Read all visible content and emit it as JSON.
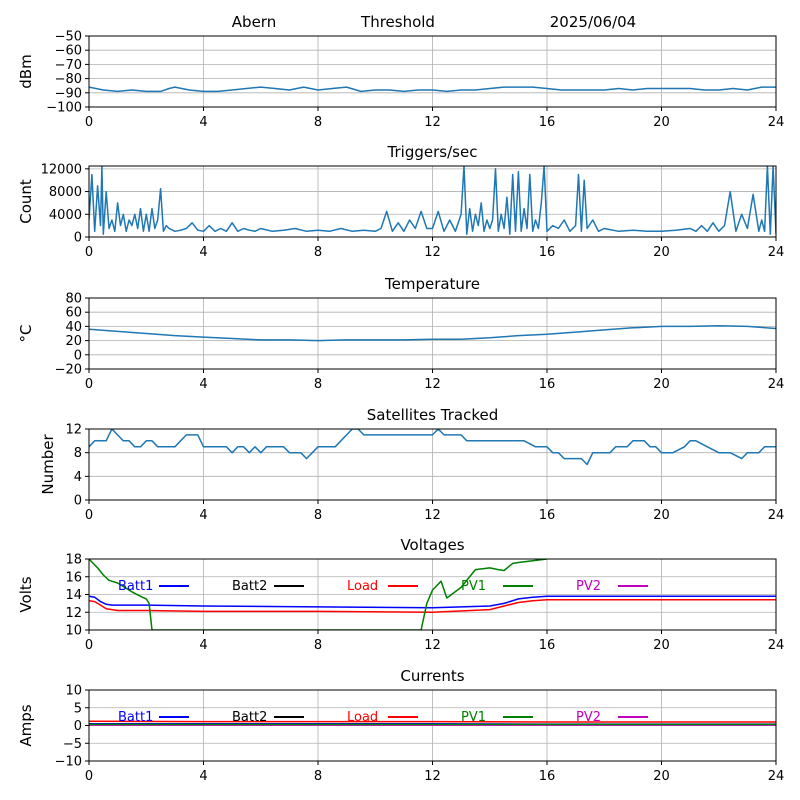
{
  "header": {
    "site": "Abern",
    "mode": "Threshold",
    "date": "2025/06/04"
  },
  "colors": {
    "series": "#1f77b4",
    "grid": "#b0b0b0",
    "batt1": "#0000ff",
    "batt2": "#000000",
    "load": "#ff0000",
    "pv1": "#008000",
    "pv2": "#bf00bf"
  },
  "chart_data": [
    {
      "type": "line",
      "title": "",
      "xlabel": "",
      "ylabel": "dBm",
      "xlim": [
        0,
        24
      ],
      "ylim": [
        -100,
        -50
      ],
      "xticks": [
        0,
        4,
        8,
        12,
        16,
        20,
        24
      ],
      "yticks": [
        -100,
        -90,
        -80,
        -70,
        -60,
        -50
      ],
      "grid": true,
      "series": [
        {
          "x": [
            0,
            0.5,
            1,
            1.5,
            2,
            2.5,
            2.8,
            3,
            3.5,
            4,
            4.5,
            5,
            5.5,
            6,
            6.5,
            7,
            7.5,
            8,
            8.5,
            9,
            9.5,
            10,
            10.5,
            11,
            11.5,
            12,
            12.5,
            13,
            13.5,
            14,
            14.5,
            15,
            15.5,
            16,
            16.5,
            17,
            17.5,
            18,
            18.5,
            19,
            19.5,
            20,
            20.5,
            21,
            21.5,
            22,
            22.5,
            23,
            23.5,
            24
          ],
          "y": [
            -86,
            -88,
            -89,
            -88,
            -89,
            -89,
            -87,
            -86,
            -88,
            -89,
            -89,
            -88,
            -87,
            -86,
            -87,
            -88,
            -86,
            -88,
            -87,
            -86,
            -89,
            -88,
            -88,
            -89,
            -88,
            -88,
            -89,
            -88,
            -88,
            -87,
            -86,
            -86,
            -86,
            -87,
            -88,
            -88,
            -88,
            -88,
            -87,
            -88,
            -87,
            -87,
            -87,
            -87,
            -88,
            -88,
            -87,
            -88,
            -86,
            -86
          ]
        }
      ]
    },
    {
      "type": "line",
      "title": "Triggers/sec",
      "xlabel": "",
      "ylabel": "Count",
      "xlim": [
        0,
        24
      ],
      "ylim": [
        0,
        12500
      ],
      "xticks": [
        0,
        4,
        8,
        12,
        16,
        20,
        24
      ],
      "yticks": [
        0,
        4000,
        8000,
        12000
      ],
      "grid": true,
      "series": [
        {
          "x": [
            0,
            0.1,
            0.2,
            0.3,
            0.4,
            0.45,
            0.5,
            0.6,
            0.7,
            0.8,
            0.9,
            1.0,
            1.1,
            1.2,
            1.3,
            1.4,
            1.5,
            1.6,
            1.7,
            1.8,
            1.9,
            2.0,
            2.1,
            2.2,
            2.3,
            2.4,
            2.5,
            2.6,
            2.7,
            2.8,
            3.0,
            3.2,
            3.4,
            3.6,
            3.8,
            4.0,
            4.2,
            4.4,
            4.6,
            4.8,
            5.0,
            5.2,
            5.4,
            5.6,
            5.8,
            6.0,
            6.4,
            6.8,
            7.2,
            7.6,
            8.0,
            8.4,
            8.8,
            9.2,
            9.6,
            10.0,
            10.2,
            10.4,
            10.6,
            10.8,
            11.0,
            11.2,
            11.4,
            11.6,
            11.8,
            12.0,
            12.2,
            12.4,
            12.6,
            12.8,
            13.0,
            13.1,
            13.2,
            13.3,
            13.4,
            13.5,
            13.6,
            13.7,
            13.8,
            13.9,
            14.0,
            14.1,
            14.2,
            14.3,
            14.4,
            14.5,
            14.6,
            14.7,
            14.8,
            14.9,
            15.0,
            15.1,
            15.2,
            15.3,
            15.4,
            15.5,
            15.6,
            15.7,
            15.8,
            15.9,
            16.0,
            16.2,
            16.4,
            16.6,
            16.8,
            17.0,
            17.1,
            17.2,
            17.3,
            17.4,
            17.6,
            17.8,
            18.0,
            18.5,
            19.0,
            19.5,
            20.0,
            20.5,
            21.0,
            21.2,
            21.4,
            21.6,
            21.8,
            22.0,
            22.2,
            22.4,
            22.6,
            22.8,
            23.0,
            23.2,
            23.4,
            23.5,
            23.6,
            23.7,
            23.8,
            23.9,
            24.0
          ],
          "y": [
            3000,
            11000,
            1000,
            9000,
            2000,
            12500,
            500,
            8000,
            1500,
            3000,
            1000,
            6000,
            2000,
            4000,
            1000,
            3000,
            2000,
            4000,
            1500,
            5000,
            1000,
            4000,
            1000,
            5000,
            1500,
            3000,
            8500,
            1000,
            2000,
            1500,
            1000,
            1200,
            1500,
            2500,
            1200,
            1000,
            2000,
            1000,
            1500,
            1000,
            2500,
            1000,
            1500,
            1200,
            1000,
            1500,
            1000,
            1200,
            1500,
            1000,
            1200,
            1000,
            1500,
            1000,
            1200,
            1000,
            1500,
            4500,
            1000,
            2500,
            1000,
            3000,
            1500,
            4500,
            1500,
            1500,
            4500,
            1000,
            3000,
            1000,
            4000,
            12500,
            500,
            5000,
            1000,
            4000,
            2000,
            6000,
            1000,
            3000,
            1500,
            3000,
            12000,
            1000,
            4000,
            1500,
            7000,
            500,
            11000,
            1000,
            11500,
            1000,
            5000,
            1500,
            11000,
            1000,
            3000,
            1500,
            6000,
            12500,
            1000,
            2000,
            1500,
            3000,
            1000,
            2000,
            11000,
            1000,
            10000,
            1500,
            3000,
            1000,
            1500,
            1000,
            1200,
            1000,
            1000,
            1200,
            1500,
            1000,
            2000,
            1000,
            2500,
            1000,
            2000,
            8000,
            1000,
            4000,
            1500,
            7500,
            1000,
            3000,
            1000,
            12500,
            500,
            12500,
            500
          ]
        }
      ]
    },
    {
      "type": "line",
      "title": "Temperature",
      "xlabel": "",
      "ylabel": "°C",
      "xlim": [
        0,
        24
      ],
      "ylim": [
        -20,
        80
      ],
      "xticks": [
        0,
        4,
        8,
        12,
        16,
        20,
        24
      ],
      "yticks": [
        -20,
        0,
        20,
        40,
        60,
        80
      ],
      "grid": true,
      "series": [
        {
          "x": [
            0,
            1,
            2,
            3,
            4,
            5,
            6,
            7,
            8,
            9,
            10,
            11,
            12,
            13,
            14,
            15,
            16,
            17,
            18,
            19,
            20,
            21,
            22,
            23,
            24
          ],
          "y": [
            36,
            33,
            30,
            27,
            25,
            23,
            21,
            21,
            20,
            21,
            21,
            21,
            22,
            22,
            24,
            27,
            29,
            32,
            35,
            38,
            40,
            40,
            41,
            40,
            37
          ]
        }
      ]
    },
    {
      "type": "line",
      "title": "Satellites Tracked",
      "xlabel": "",
      "ylabel": "Number",
      "xlim": [
        0,
        24
      ],
      "ylim": [
        0,
        12
      ],
      "xticks": [
        0,
        4,
        8,
        12,
        16,
        20,
        24
      ],
      "yticks": [
        0,
        4,
        8,
        12
      ],
      "grid": true,
      "series": [
        {
          "x": [
            0,
            0.2,
            0.4,
            0.6,
            0.7,
            0.8,
            1.0,
            1.2,
            1.4,
            1.6,
            1.8,
            2.0,
            2.2,
            2.4,
            2.6,
            2.8,
            3.0,
            3.2,
            3.4,
            3.6,
            3.8,
            4.0,
            4.4,
            4.8,
            5.0,
            5.2,
            5.4,
            5.6,
            5.8,
            6.0,
            6.2,
            6.4,
            6.6,
            6.8,
            7.0,
            7.2,
            7.4,
            7.6,
            7.8,
            8.0,
            8.2,
            8.4,
            8.6,
            8.8,
            9.0,
            9.2,
            9.4,
            9.6,
            9.8,
            10.0,
            10.5,
            11.0,
            11.5,
            12.0,
            12.2,
            12.4,
            12.6,
            12.8,
            13.0,
            13.2,
            13.4,
            13.6,
            14.0,
            14.4,
            14.8,
            15.2,
            15.6,
            16.0,
            16.2,
            16.4,
            16.6,
            16.8,
            17.0,
            17.2,
            17.4,
            17.6,
            17.8,
            18.0,
            18.2,
            18.4,
            18.6,
            18.8,
            19.0,
            19.4,
            19.6,
            19.8,
            20.0,
            20.4,
            20.8,
            21.0,
            21.2,
            21.6,
            22.0,
            22.4,
            22.8,
            23.0,
            23.2,
            23.4,
            23.6,
            24.0
          ],
          "y": [
            9,
            10,
            10,
            10,
            11,
            12,
            11,
            10,
            10,
            9,
            9,
            10,
            10,
            9,
            9,
            9,
            9,
            10,
            11,
            11,
            11,
            9,
            9,
            9,
            8,
            9,
            9,
            8,
            9,
            8,
            9,
            9,
            9,
            9,
            8,
            8,
            8,
            7,
            8,
            9,
            9,
            9,
            9,
            10,
            11,
            12,
            12,
            11,
            11,
            11,
            11,
            11,
            11,
            11,
            12,
            11,
            11,
            11,
            11,
            10,
            10,
            10,
            10,
            10,
            10,
            10,
            9,
            9,
            8,
            8,
            7,
            7,
            7,
            7,
            6,
            8,
            8,
            8,
            8,
            9,
            9,
            9,
            10,
            10,
            9,
            9,
            8,
            8,
            9,
            10,
            10,
            9,
            8,
            8,
            7,
            8,
            8,
            8,
            9,
            9
          ]
        }
      ]
    },
    {
      "type": "line",
      "title": "Voltages",
      "xlabel": "",
      "ylabel": "Volts",
      "xlim": [
        0,
        24
      ],
      "ylim": [
        10,
        18
      ],
      "xticks": [
        0,
        4,
        8,
        12,
        16,
        20,
        24
      ],
      "yticks": [
        10,
        12,
        14,
        16,
        18
      ],
      "grid": true,
      "legend": "top",
      "legend_labels": [
        "Batt1",
        "Batt2",
        "Load",
        "PV1",
        "PV2"
      ],
      "series": [
        {
          "name": "Batt1",
          "color_key": "batt1",
          "x": [
            0,
            0.2,
            0.4,
            0.6,
            0.8,
            1,
            2,
            4,
            8,
            12,
            14,
            14.5,
            15,
            15.5,
            16,
            18,
            20,
            24
          ],
          "y": [
            13.8,
            13.7,
            13.2,
            12.9,
            12.8,
            12.8,
            12.8,
            12.7,
            12.6,
            12.5,
            12.7,
            13.0,
            13.5,
            13.7,
            13.8,
            13.8,
            13.8,
            13.8
          ]
        },
        {
          "name": "Load",
          "color_key": "load",
          "x": [
            0,
            0.2,
            0.4,
            0.6,
            0.8,
            1,
            2,
            4,
            8,
            12,
            14,
            14.5,
            15,
            15.5,
            16,
            18,
            20,
            24
          ],
          "y": [
            13.3,
            13.2,
            12.8,
            12.4,
            12.3,
            12.2,
            12.2,
            12.1,
            12.1,
            12.0,
            12.3,
            12.7,
            13.1,
            13.3,
            13.4,
            13.4,
            13.4,
            13.4
          ]
        },
        {
          "name": "PV1",
          "color_key": "pv1",
          "x": [
            0,
            0.3,
            0.5,
            0.7,
            1.0,
            1.2,
            1.5,
            1.8,
            2.0,
            2.1,
            2.2,
            11.6,
            11.8,
            12.0,
            12.3,
            12.5,
            13.0,
            13.5,
            14.0,
            14.3,
            14.5,
            14.8,
            15.0,
            15.5,
            16.0
          ],
          "y": [
            18.0,
            17.0,
            16.2,
            15.6,
            15.3,
            14.9,
            14.3,
            13.8,
            13.5,
            13.0,
            10.0,
            10.0,
            13.0,
            14.5,
            15.5,
            13.6,
            14.8,
            16.8,
            17.0,
            16.8,
            16.7,
            17.5,
            17.6,
            17.8,
            18.0
          ]
        }
      ]
    },
    {
      "type": "line",
      "title": "Currents",
      "xlabel": "",
      "ylabel": "Amps",
      "xlim": [
        0,
        24
      ],
      "ylim": [
        -10,
        10
      ],
      "xticks": [
        0,
        4,
        8,
        12,
        16,
        20,
        24
      ],
      "yticks": [
        -10,
        -5,
        0,
        5,
        10
      ],
      "grid": true,
      "legend": "top",
      "legend_labels": [
        "Batt1",
        "Batt2",
        "Load",
        "PV1",
        "PV2"
      ],
      "series": [
        {
          "name": "Load",
          "color_key": "load",
          "x": [
            0,
            4,
            8,
            12,
            16,
            20,
            24
          ],
          "y": [
            1.2,
            1.1,
            1.1,
            1.1,
            1.0,
            1.0,
            1.0
          ]
        },
        {
          "name": "Batt1",
          "color_key": "batt1",
          "x": [
            0,
            4,
            8,
            12,
            16,
            20,
            24
          ],
          "y": [
            0.5,
            0.5,
            0.5,
            0.5,
            0.4,
            0.4,
            0.4
          ]
        },
        {
          "name": "PV2",
          "color_key": "pv2",
          "x": [
            0,
            4,
            8,
            12,
            16,
            20,
            24
          ],
          "y": [
            0.1,
            0.1,
            0.1,
            0.1,
            0.1,
            0.1,
            0.1
          ]
        },
        {
          "name": "PV1",
          "color_key": "pv1",
          "x": [
            0,
            4,
            8,
            12,
            16,
            20,
            24
          ],
          "y": [
            0.3,
            0.3,
            0.3,
            0.3,
            0.3,
            0.3,
            0.3
          ]
        }
      ]
    }
  ]
}
